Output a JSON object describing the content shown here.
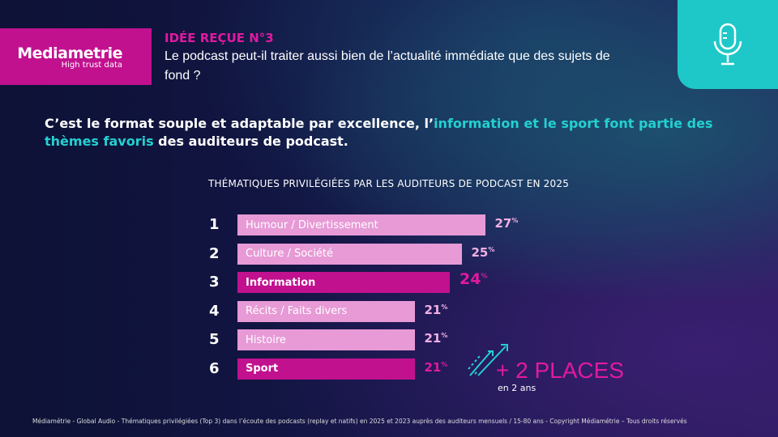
{
  "logo": {
    "brand": "Mediametrie",
    "tagline": "High trust data"
  },
  "kicker": "IDÉE REÇUE N°3",
  "question": "Le podcast peut-il traiter aussi bien de l’actualité immédiate que des sujets de fond ?",
  "headline": {
    "part1": "C’est le format souple et adaptable par excellence, l’",
    "highlight": "information et le sport font partie des thèmes favoris",
    "part2": " des auditeurs de podcast."
  },
  "icon": "microphone-icon",
  "colors": {
    "accent": "#c1118f",
    "light_bar": "#e79ad6",
    "teal": "#1fc8c8"
  },
  "chart_data": {
    "type": "bar",
    "orientation": "horizontal",
    "title": "THÉMATIQUES PRIVILÉGIÉES PAR LES AUDITEURS DE PODCAST EN 2025",
    "categories": [
      "Humour / Divertissement",
      "Culture / Société",
      "Information",
      "Récits / Faits divers",
      "Histoire",
      "Sport"
    ],
    "ranks": [
      "1",
      "2",
      "3",
      "4",
      "5",
      "6"
    ],
    "values": [
      27,
      25,
      24,
      21,
      21,
      21
    ],
    "unit": "%",
    "highlighted": [
      false,
      false,
      true,
      false,
      false,
      true
    ]
  },
  "callout": {
    "main": "+ 2 PLACES",
    "sub": "en 2 ans"
  },
  "footer": "Médiamétrie - Global Audio - Thématiques privilégiées (Top 3) dans l’écoute des podcasts (replay et natifs) en 2025 et 2023 auprès des auditeurs mensuels / 15-80 ans - Copyright Médiamétrie – Tous droits réservés"
}
